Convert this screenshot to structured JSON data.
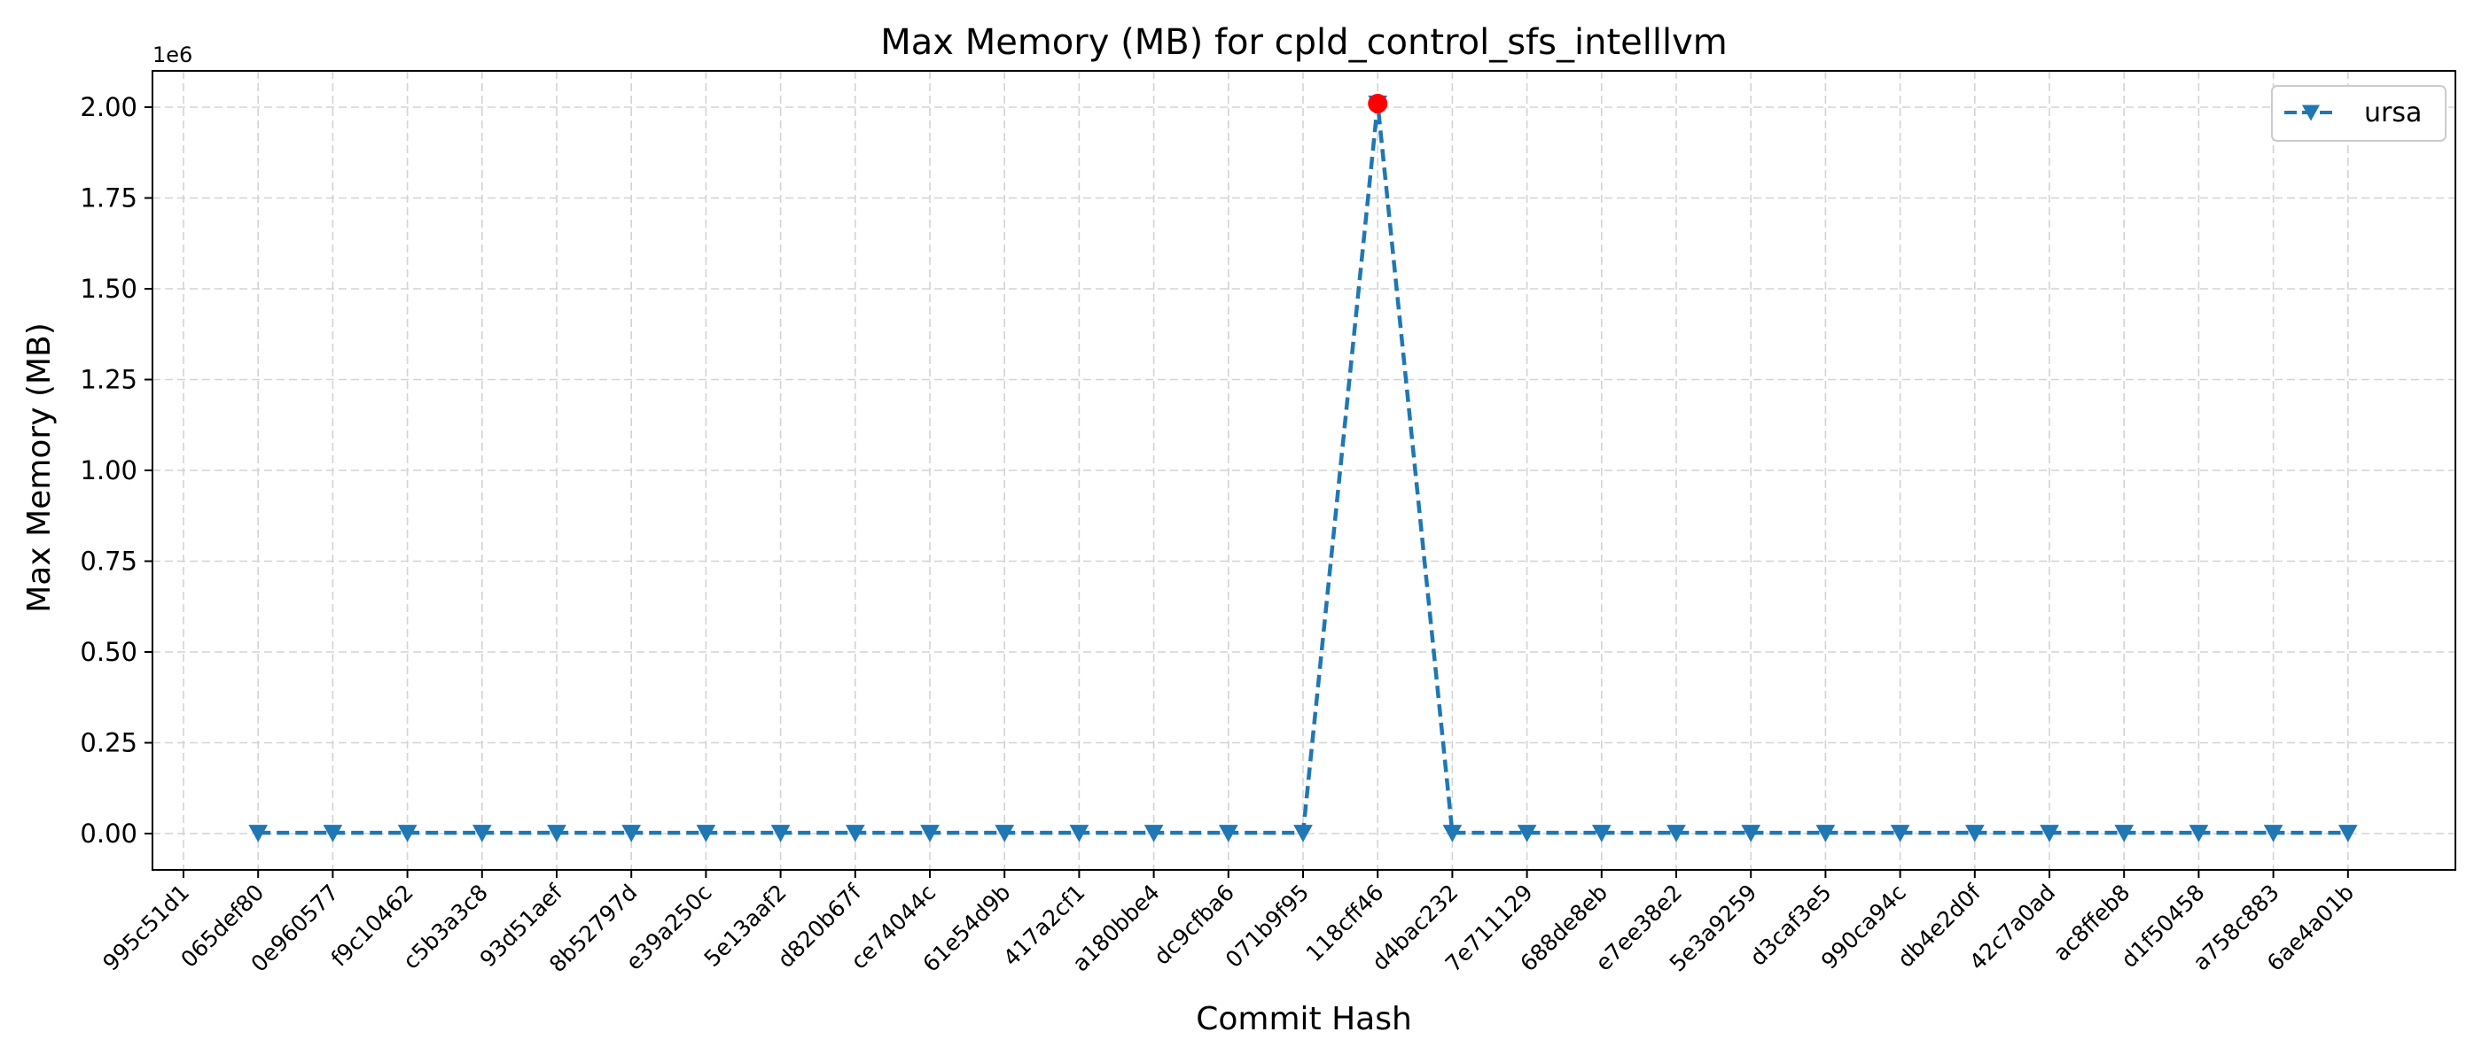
{
  "chart_data": {
    "type": "line",
    "title": "Max Memory (MB) for cpld_control_sfs_intelllvm",
    "xlabel": "Commit Hash",
    "ylabel": "Max Memory (MB)",
    "y_offset_label": "1e6",
    "y_scale_factor": 1000000,
    "ylim": [
      -100000,
      2100000
    ],
    "y_ticks": [
      0,
      250000,
      500000,
      750000,
      1000000,
      1250000,
      1500000,
      1750000,
      2000000
    ],
    "y_tick_labels": [
      "0.00",
      "0.25",
      "0.50",
      "0.75",
      "1.00",
      "1.25",
      "1.50",
      "1.75",
      "2.00"
    ],
    "categories": [
      "995c51d1",
      "065def80",
      "0e960577",
      "f9c10462",
      "c5b3a3c8",
      "93d51aef",
      "8b52797d",
      "e39a250c",
      "5e13aaf2",
      "d820b67f",
      "ce74044c",
      "61e54d9b",
      "417a2cf1",
      "a180bbe4",
      "dc9cfba6",
      "071b9f95",
      "118cff46",
      "d4bac232",
      "7e711129",
      "688de8eb",
      "e7ee38e2",
      "5e3a9259",
      "d3caf3e5",
      "990ca94c",
      "db4e2d0f",
      "42c7a0ad",
      "ac8ffeb8",
      "d1f50458",
      "a758c883",
      "6ae4a01b"
    ],
    "grid": true,
    "legend_position": "top-right",
    "series": [
      {
        "name": "ursa",
        "color": "#1f77b4",
        "line_style": "dashed",
        "marker": "triangle-down",
        "x": [
          "065def80",
          "0e960577",
          "f9c10462",
          "c5b3a3c8",
          "93d51aef",
          "8b52797d",
          "e39a250c",
          "5e13aaf2",
          "d820b67f",
          "ce74044c",
          "61e54d9b",
          "417a2cf1",
          "a180bbe4",
          "dc9cfba6",
          "071b9f95",
          "118cff46",
          "d4bac232",
          "7e711129",
          "688de8eb",
          "e7ee38e2",
          "5e3a9259",
          "d3caf3e5",
          "990ca94c",
          "db4e2d0f",
          "42c7a0ad",
          "ac8ffeb8",
          "d1f50458",
          "a758c883",
          "6ae4a01b"
        ],
        "values": [
          2000,
          2000,
          2000,
          2000,
          2000,
          2000,
          2000,
          2000,
          2000,
          2000,
          2000,
          2000,
          2000,
          2000,
          2000,
          2010000,
          2000,
          2000,
          2000,
          2000,
          2000,
          2000,
          2000,
          2000,
          2000,
          2000,
          2000,
          2000,
          2000
        ]
      }
    ],
    "highlight": {
      "x": "118cff46",
      "value": 2010000,
      "color": "#ff0000",
      "marker": "circle"
    }
  }
}
